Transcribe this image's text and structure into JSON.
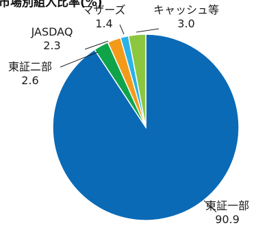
{
  "chart_data": {
    "type": "pie",
    "title": "市場別組入比率(%)",
    "categories": [
      "東証一部",
      "東証二部",
      "JASDAQ",
      "マザーズ",
      "キャッシュ等"
    ],
    "values": [
      90.9,
      2.6,
      2.3,
      1.4,
      3.0
    ],
    "value_labels": [
      "90.9",
      "2.6",
      "2.3",
      "1.4",
      "3.0"
    ],
    "colors": [
      "#0a6ab6",
      "#10a44a",
      "#f39a1b",
      "#2ab3e6",
      "#8dc63f"
    ],
    "start_angle_deg": 0,
    "direction": "clockwise",
    "legend": "none"
  }
}
